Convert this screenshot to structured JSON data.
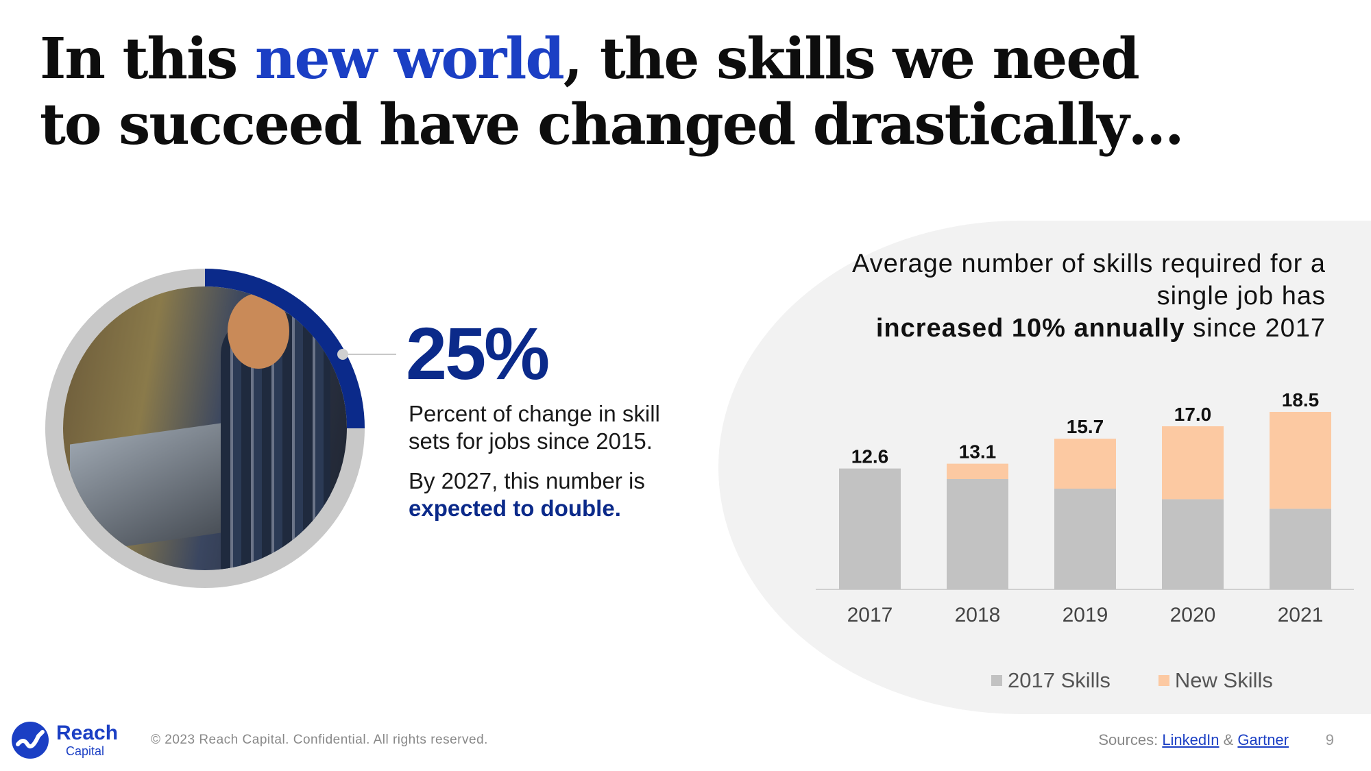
{
  "headline": {
    "part1": "In this ",
    "highlight": "new world",
    "part2": ", the skills we need to succeed have changed drastically…"
  },
  "stat": {
    "value": "25%",
    "ring_fraction": 0.25,
    "description": "Percent of change in skill sets for jobs since 2015.",
    "note_prefix": "By 2027, this number is ",
    "note_bold": "expected to double."
  },
  "chart_caption": {
    "line1": "Average number of skills required for a single job has",
    "bold": "increased 10% annually",
    "line2_rest": " since 2017"
  },
  "chart_data": {
    "type": "bar",
    "stacked": true,
    "categories": [
      "2017",
      "2018",
      "2019",
      "2020",
      "2021"
    ],
    "series": [
      {
        "name": "2017 Skills",
        "values": [
          12.6,
          11.5,
          10.5,
          9.4,
          8.4
        ],
        "color": "#c2c2c2"
      },
      {
        "name": "New Skills",
        "values": [
          0,
          1.6,
          5.2,
          7.6,
          10.1
        ],
        "color": "#fcc9a2"
      }
    ],
    "totals": [
      "12.6",
      "13.1",
      "15.7",
      "17.0",
      "18.5"
    ],
    "ylim": [
      0,
      20
    ],
    "grid": false,
    "legend_position": "bottom"
  },
  "legend": {
    "item1": "2017 Skills",
    "item2": "New Skills"
  },
  "footer": {
    "logo_name": "Reach",
    "logo_sub": "Capital",
    "copyright": "© 2023 Reach Capital. Confidential. All rights reserved.",
    "sources_label": "Sources: ",
    "source1": "LinkedIn",
    "amp": " & ",
    "source2": "Gartner",
    "page": "9"
  },
  "colors": {
    "brand_blue": "#0b2a8a",
    "highlight_blue": "#1b3fc4",
    "bar_gray": "#c2c2c2",
    "bar_peach": "#fcc9a2"
  }
}
